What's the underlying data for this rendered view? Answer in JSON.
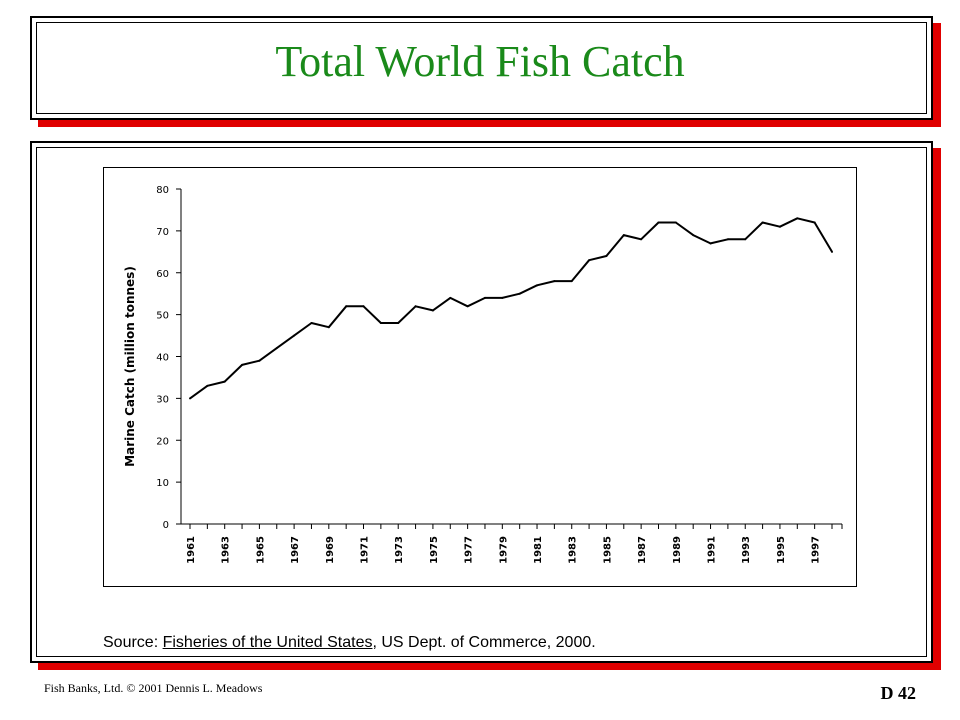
{
  "slide": {
    "title": "Total World Fish Catch",
    "source_prefix": "Source: ",
    "source_title": "Fisheries of the United States",
    "source_rest": ", US Dept. of Commerce, 2000.",
    "footer_left": "Fish Banks, Ltd. © 2001 Dennis L. Meadows",
    "footer_right": "D  42",
    "colors": {
      "title": "#1a8a1a",
      "shadow": "#e00000"
    }
  },
  "chart_data": {
    "type": "line",
    "title": "",
    "xlabel": "",
    "ylabel": "Marine Catch (million tonnes)",
    "ylim": [
      0,
      80
    ],
    "yticks": [
      0,
      10,
      20,
      30,
      40,
      50,
      60,
      70,
      80
    ],
    "x": [
      1961,
      1962,
      1963,
      1964,
      1965,
      1966,
      1967,
      1968,
      1969,
      1970,
      1971,
      1972,
      1973,
      1974,
      1975,
      1976,
      1977,
      1978,
      1979,
      1980,
      1981,
      1982,
      1983,
      1984,
      1985,
      1986,
      1987,
      1988,
      1989,
      1990,
      1991,
      1992,
      1993,
      1994,
      1995,
      1996,
      1997,
      1998
    ],
    "x_tick_labels": [
      "1961",
      "1963",
      "1965",
      "1967",
      "1969",
      "1971",
      "1973",
      "1975",
      "1977",
      "1979",
      "1981",
      "1983",
      "1985",
      "1987",
      "1989",
      "1991",
      "1993",
      "1995",
      "1997"
    ],
    "series": [
      {
        "values": [
          30,
          33,
          34,
          38,
          39,
          42,
          45,
          48,
          47,
          52,
          52,
          48,
          48,
          52,
          51,
          54,
          52,
          54,
          54,
          55,
          57,
          58,
          58,
          63,
          64,
          69,
          68,
          72,
          72,
          69,
          67,
          68,
          68,
          72,
          71,
          73,
          72,
          65
        ]
      }
    ],
    "grid": false
  }
}
